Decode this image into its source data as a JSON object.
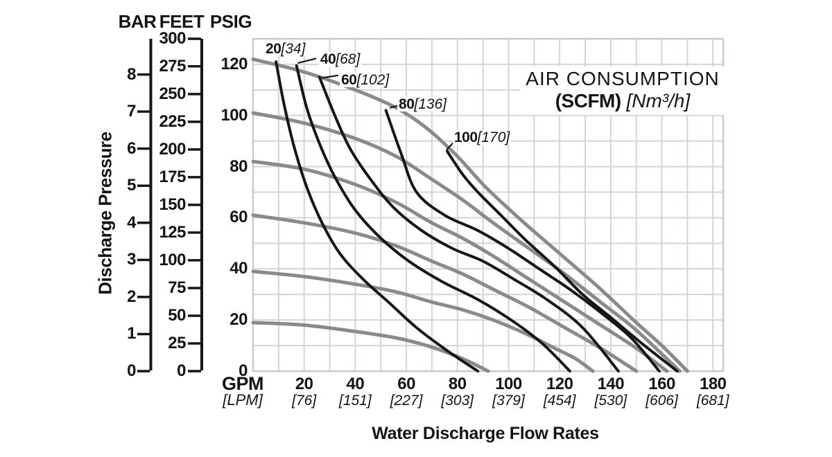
{
  "annotation": {
    "line1": "AIR CONSUMPTION",
    "line2_bold": "(SCFM)",
    "line2_italic": "[Nm³/h]"
  },
  "chart_data": {
    "type": "line",
    "title": "AIR CONSUMPTION (SCFM) [Nm³/h]",
    "xlabel": "Water Discharge Flow Rates",
    "grid": {
      "on": true,
      "step_gpm": 10,
      "step_psig": 10
    },
    "x_axis": {
      "unit_primary": "GPM",
      "unit_secondary": "[LPM]",
      "xlim_gpm": [
        0,
        184
      ],
      "ticks_gpm": [
        "20",
        "40",
        "60",
        "80",
        "100",
        "120",
        "140",
        "160",
        "180"
      ],
      "ticks_lpm": [
        "[76]",
        "[151]",
        "[227]",
        "[303]",
        "[379]",
        "[454]",
        "[530]",
        "[606]",
        "[681]"
      ]
    },
    "y_axis": {
      "title": "Discharge Pressure",
      "ylim_psig": [
        0,
        130
      ],
      "scales": [
        {
          "name": "BAR",
          "psi_per_unit": 14.5038,
          "ticks": [
            0,
            1,
            2,
            3,
            4,
            5,
            6,
            7,
            8
          ]
        },
        {
          "name": "FEET",
          "psi_per_unit": 0.43353,
          "ticks": [
            0,
            25,
            50,
            75,
            100,
            125,
            150,
            175,
            200,
            225,
            250,
            275,
            300
          ]
        },
        {
          "name": "PSIG",
          "psi_per_unit": 1,
          "ticks": [
            0,
            20,
            40,
            60,
            80,
            100,
            120
          ]
        }
      ]
    },
    "performance_curves_gray": [
      {
        "name": "performance-curve-120psig",
        "points_gpm_psig": [
          [
            0,
            122
          ],
          [
            20,
            117
          ],
          [
            40,
            110
          ],
          [
            56,
            103
          ],
          [
            68,
            95
          ],
          [
            80,
            84
          ],
          [
            91,
            72
          ],
          [
            105,
            59
          ],
          [
            120,
            46
          ],
          [
            135,
            33
          ],
          [
            150,
            19
          ],
          [
            160,
            10
          ],
          [
            170,
            0
          ]
        ]
      },
      {
        "name": "performance-curve-100psig",
        "points_gpm_psig": [
          [
            0,
            101
          ],
          [
            20,
            97
          ],
          [
            40,
            91
          ],
          [
            56,
            84
          ],
          [
            70,
            75
          ],
          [
            82,
            67
          ],
          [
            94,
            58
          ],
          [
            108,
            48
          ],
          [
            122,
            38
          ],
          [
            136,
            27
          ],
          [
            150,
            16
          ],
          [
            167,
            0
          ]
        ]
      },
      {
        "name": "performance-curve-80psig",
        "points_gpm_psig": [
          [
            0,
            82
          ],
          [
            20,
            79
          ],
          [
            40,
            73
          ],
          [
            56,
            66
          ],
          [
            70,
            58
          ],
          [
            82,
            52
          ],
          [
            94,
            45
          ],
          [
            108,
            36
          ],
          [
            122,
            27
          ],
          [
            136,
            18
          ],
          [
            150,
            9
          ],
          [
            162,
            0
          ]
        ]
      },
      {
        "name": "performance-curve-60psig",
        "points_gpm_psig": [
          [
            0,
            61
          ],
          [
            20,
            58
          ],
          [
            40,
            54
          ],
          [
            56,
            49
          ],
          [
            70,
            43
          ],
          [
            82,
            38
          ],
          [
            94,
            32
          ],
          [
            108,
            25
          ],
          [
            122,
            17
          ],
          [
            136,
            9
          ],
          [
            150,
            0
          ]
        ]
      },
      {
        "name": "performance-curve-40psig",
        "points_gpm_psig": [
          [
            0,
            39
          ],
          [
            20,
            37
          ],
          [
            40,
            34
          ],
          [
            56,
            31
          ],
          [
            70,
            27
          ],
          [
            82,
            24
          ],
          [
            94,
            20
          ],
          [
            106,
            15
          ],
          [
            118,
            9
          ],
          [
            126,
            5
          ],
          [
            133,
            0
          ]
        ]
      },
      {
        "name": "performance-curve-20psig",
        "points_gpm_psig": [
          [
            0,
            19
          ],
          [
            20,
            18
          ],
          [
            40,
            15.5
          ],
          [
            56,
            13
          ],
          [
            68,
            10
          ],
          [
            78,
            6.5
          ],
          [
            85,
            3.5
          ],
          [
            92,
            0
          ]
        ]
      }
    ],
    "air_consumption_curves_black": [
      {
        "scfm": "20",
        "nm3h": "[34]",
        "label_at": [
          4.9,
          123.5
        ],
        "leader": null,
        "points_gpm_psig": [
          [
            9,
            121
          ],
          [
            12,
            105
          ],
          [
            16,
            88
          ],
          [
            21,
            72
          ],
          [
            27,
            58
          ],
          [
            34,
            46
          ],
          [
            43,
            36
          ],
          [
            53,
            27
          ],
          [
            64,
            17
          ],
          [
            76,
            8
          ],
          [
            88,
            0
          ]
        ]
      },
      {
        "scfm": "40",
        "nm3h": "[68]",
        "label_at": [
          26.3,
          119.4
        ],
        "leader": [
          [
            24.7,
            122.3
          ],
          [
            17.5,
            120.5
          ]
        ],
        "points_gpm_psig": [
          [
            17,
            119.5
          ],
          [
            21,
            103
          ],
          [
            26,
            89
          ],
          [
            32,
            76
          ],
          [
            40,
            63
          ],
          [
            50,
            52
          ],
          [
            61,
            43
          ],
          [
            74,
            35
          ],
          [
            88,
            28
          ],
          [
            101,
            20
          ],
          [
            113,
            11
          ],
          [
            124,
            0
          ]
        ]
      },
      {
        "scfm": "60",
        "nm3h": "[102]",
        "label_at": [
          34.5,
          111.3
        ],
        "leader": [
          [
            33.4,
            115.7
          ],
          [
            26.9,
            114.7
          ]
        ],
        "points_gpm_psig": [
          [
            26,
            115
          ],
          [
            32,
            100
          ],
          [
            38,
            87
          ],
          [
            46,
            75
          ],
          [
            55,
            64
          ],
          [
            66,
            55
          ],
          [
            78,
            48
          ],
          [
            90,
            43
          ],
          [
            102,
            36
          ],
          [
            115,
            28
          ],
          [
            129,
            17
          ],
          [
            143,
            0
          ]
        ]
      },
      {
        "scfm": "80",
        "nm3h": "[136]",
        "label_at": [
          57,
          101.8
        ],
        "leader": [
          [
            59.4,
            104.5
          ],
          [
            53.5,
            103
          ]
        ],
        "points_gpm_psig": [
          [
            52,
            102
          ],
          [
            58,
            85
          ],
          [
            64,
            70
          ],
          [
            75,
            61
          ],
          [
            88,
            55
          ],
          [
            100,
            48
          ],
          [
            112,
            40
          ],
          [
            124,
            32
          ],
          [
            136,
            23
          ],
          [
            148,
            13
          ],
          [
            159,
            0
          ]
        ]
      },
      {
        "scfm": "100",
        "nm3h": "[170]",
        "label_at": [
          78.7,
          88.8
        ],
        "leader": [
          [
            78.4,
            89.4
          ],
          [
            75.7,
            86.5
          ]
        ],
        "points_gpm_psig": [
          [
            76,
            86
          ],
          [
            82,
            77
          ],
          [
            88,
            70
          ],
          [
            97,
            61
          ],
          [
            107,
            51
          ],
          [
            118,
            41
          ],
          [
            129,
            30
          ],
          [
            140,
            21
          ],
          [
            152,
            11
          ],
          [
            166,
            0
          ]
        ]
      }
    ],
    "colors": {
      "curve_black": "#161616",
      "curve_gray": "#8a8a8a",
      "grid": "#d3d4d6",
      "plot_border": "#c7c9cb",
      "text": "#141414"
    }
  }
}
